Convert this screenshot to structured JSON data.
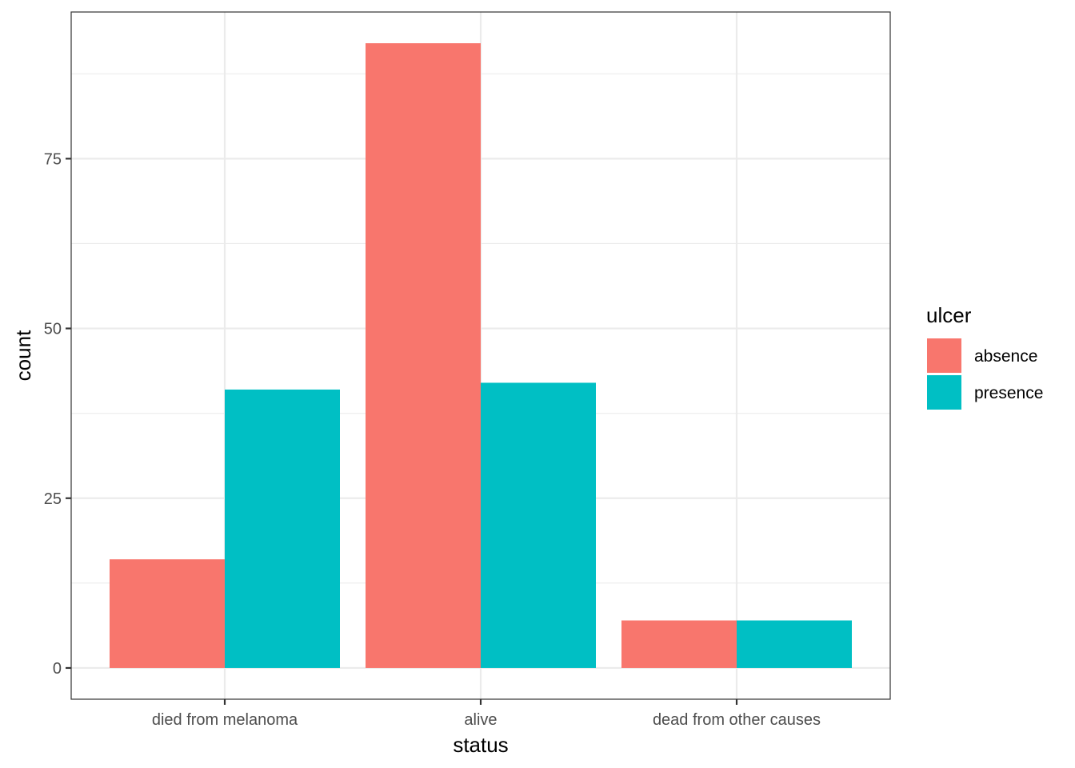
{
  "chart_data": {
    "type": "bar",
    "title": "",
    "xlabel": "status",
    "ylabel": "count",
    "categories": [
      "died from melanoma",
      "alive",
      "dead from other causes"
    ],
    "series": [
      {
        "name": "absence",
        "color": "#F8766D",
        "values": [
          16,
          92,
          7
        ]
      },
      {
        "name": "presence",
        "color": "#00BFC4",
        "values": [
          41,
          42,
          7
        ]
      }
    ],
    "ylim": [
      -4.6,
      96.6
    ],
    "yticks": [
      0,
      25,
      50,
      75
    ],
    "legend": {
      "title": "ulcer",
      "position": "right"
    },
    "grid": true
  }
}
